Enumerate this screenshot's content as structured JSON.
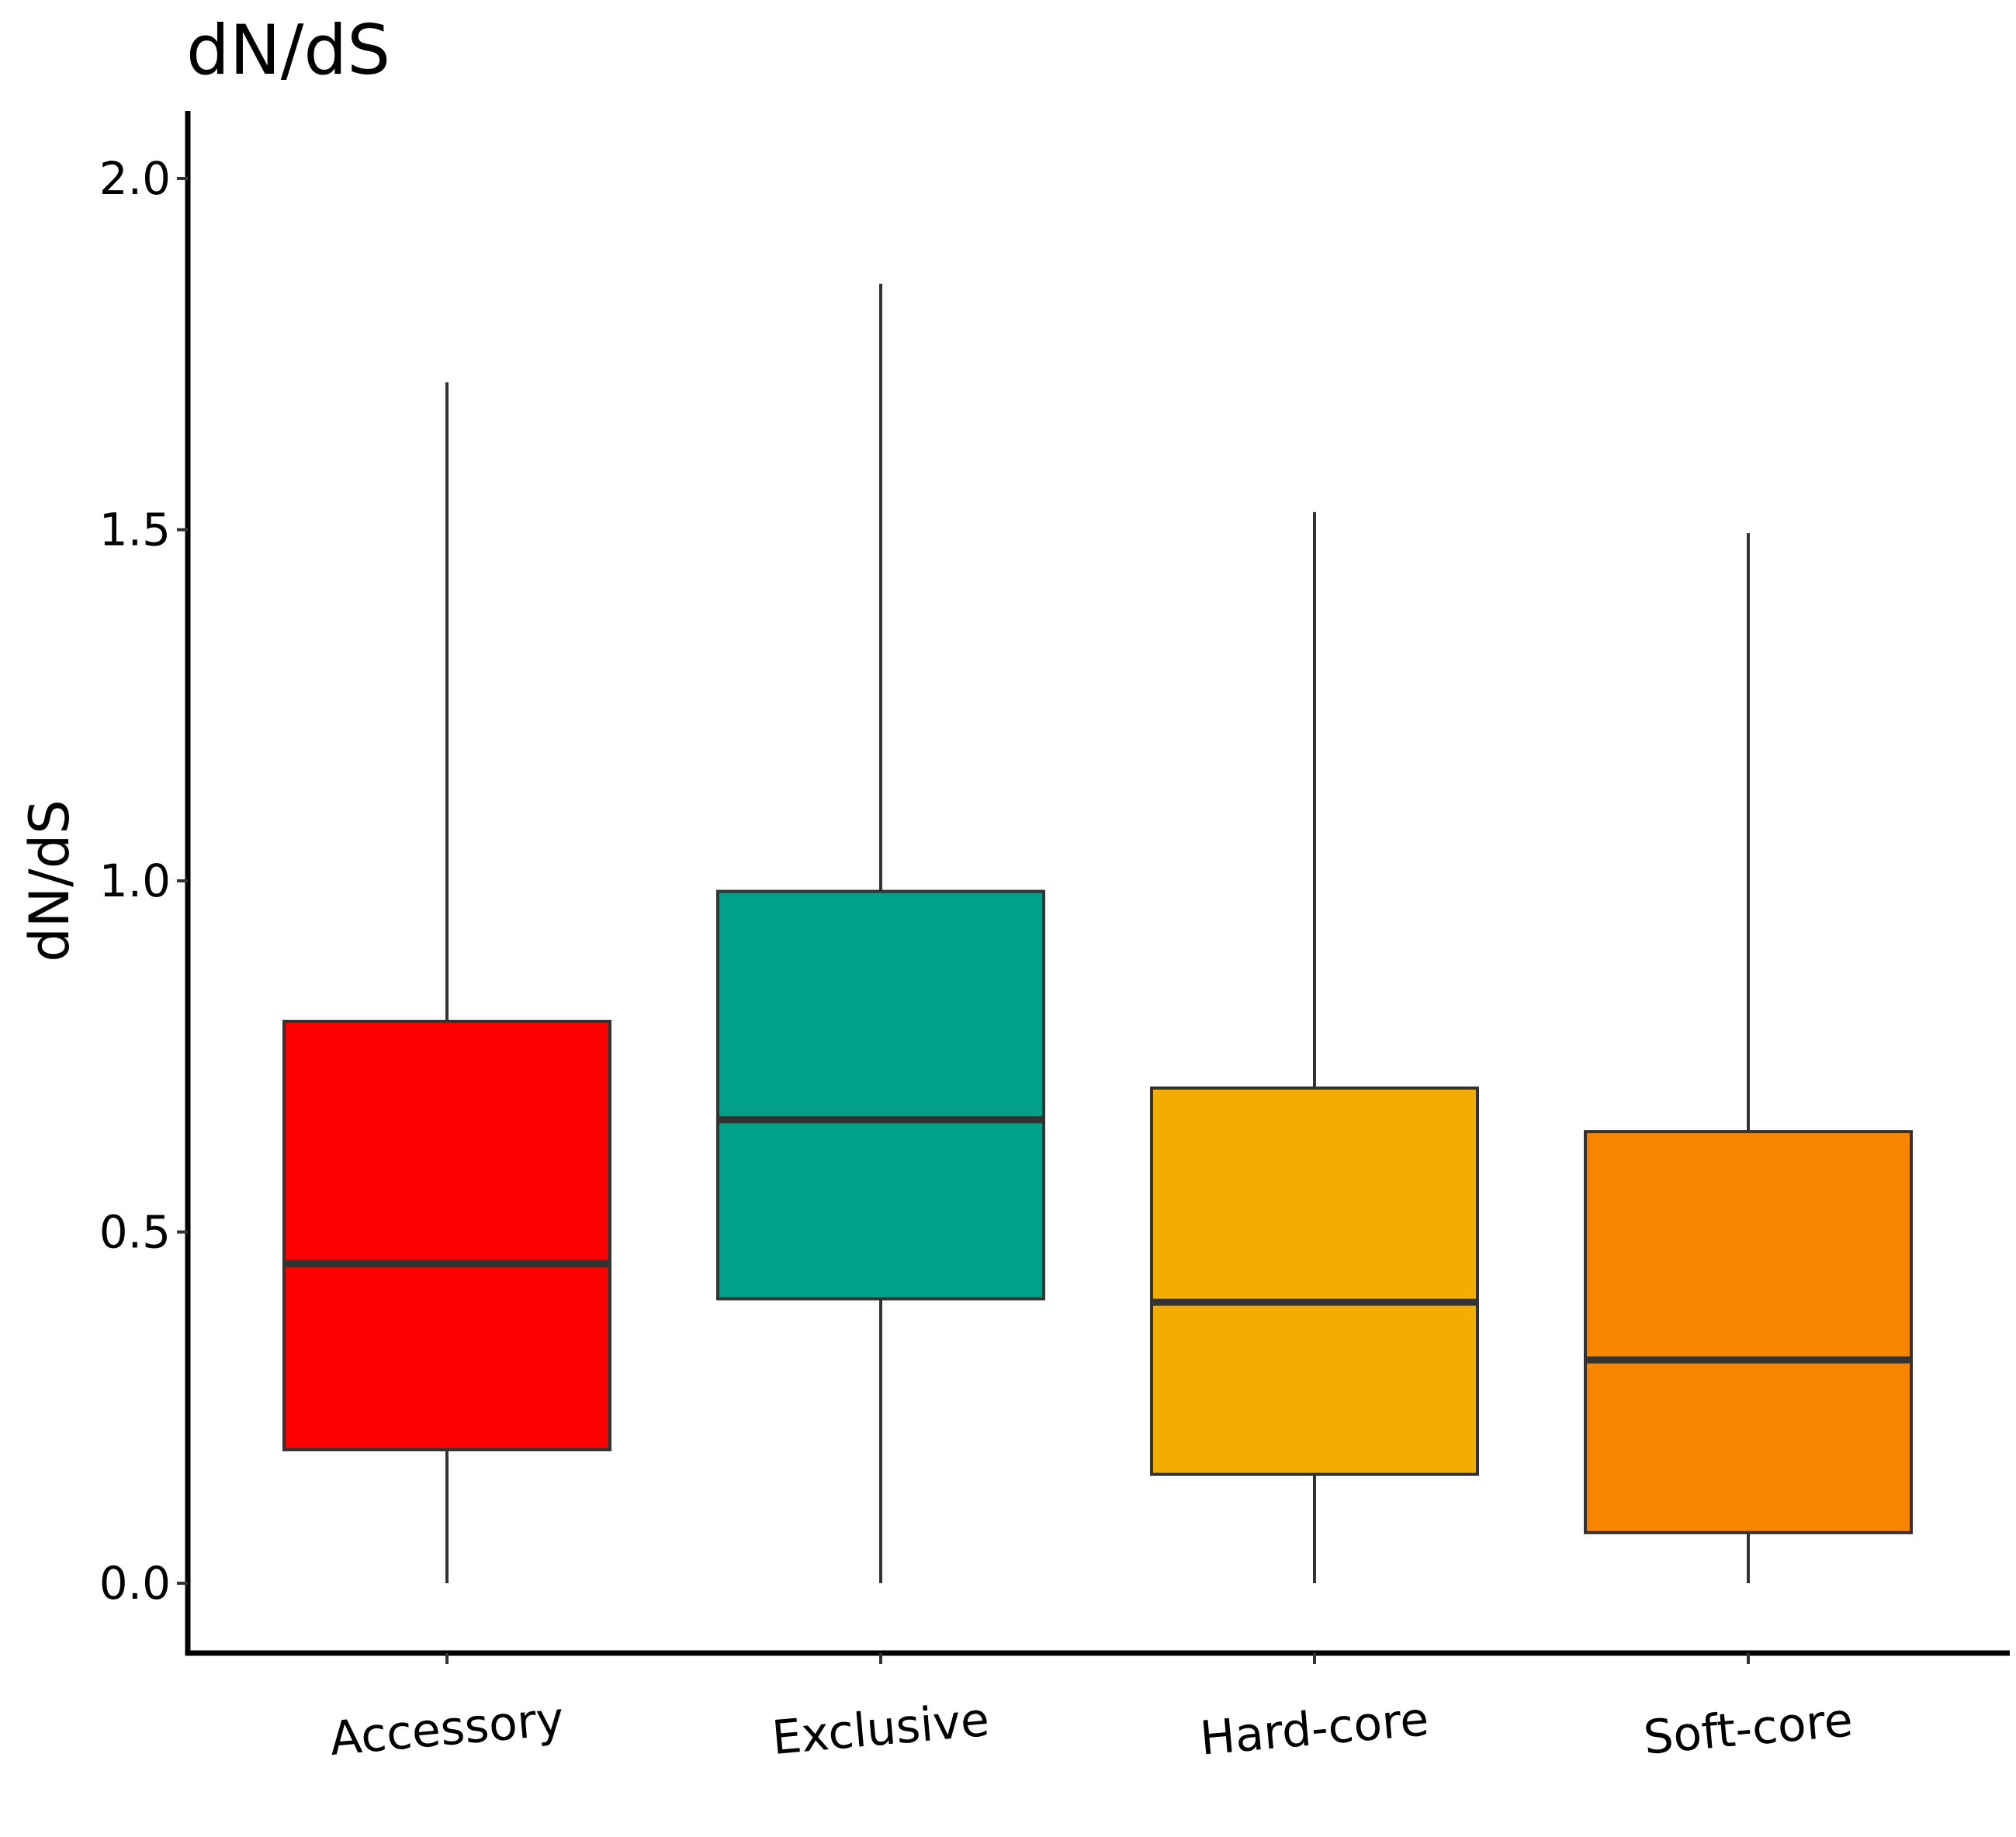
{
  "chart_data": {
    "type": "box",
    "title": "dN/dS",
    "ylabel": "dN/dS",
    "xlabel": "",
    "ylim": [
      -0.1,
      2.1
    ],
    "yticks": [
      0.0,
      0.5,
      1.0,
      1.5,
      2.0
    ],
    "ytick_labels": [
      "0.0",
      "0.5",
      "1.0",
      "1.5",
      "2.0"
    ],
    "grid": false,
    "legend": "none",
    "categories": [
      "Accessory",
      "Exclusive",
      "Hard-core",
      "Soft-core"
    ],
    "boxes": [
      {
        "category": "Accessory",
        "whisker_low": 0.0,
        "q1": 0.19,
        "median": 0.455,
        "q3": 0.8,
        "whisker_high": 1.71,
        "color": "#FF0000"
      },
      {
        "category": "Exclusive",
        "whisker_low": 0.0,
        "q1": 0.405,
        "median": 0.66,
        "q3": 0.985,
        "whisker_high": 1.85,
        "color": "#00A08A"
      },
      {
        "category": "Hard-core",
        "whisker_low": 0.0,
        "q1": 0.155,
        "median": 0.4,
        "q3": 0.705,
        "whisker_high": 1.525,
        "color": "#F2AD00"
      },
      {
        "category": "Soft-core",
        "whisker_low": 0.0,
        "q1": 0.072,
        "median": 0.318,
        "q3": 0.643,
        "whisker_high": 1.495,
        "color": "#F98400"
      }
    ]
  }
}
